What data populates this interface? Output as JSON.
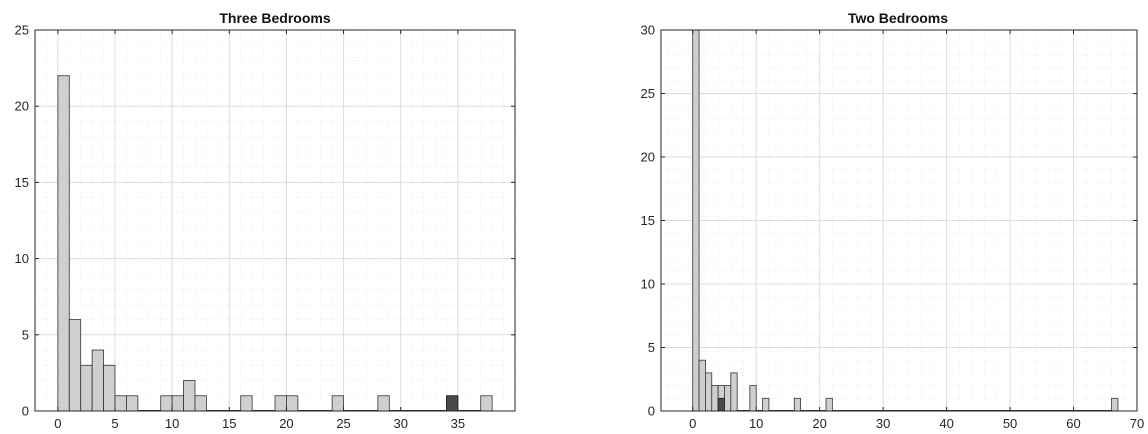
{
  "chart_data": [
    {
      "type": "bar",
      "subtype": "histogram",
      "title": "Three Bedrooms",
      "xlabel": "",
      "ylabel": "",
      "xlim": [
        -2,
        40
      ],
      "ylim": [
        0,
        25
      ],
      "xticks": [
        0,
        5,
        10,
        15,
        20,
        25,
        30,
        35
      ],
      "yticks": [
        0,
        5,
        10,
        15,
        20,
        25
      ],
      "grid": "major-and-minor",
      "bin_width": 1,
      "bin_start": 0,
      "values": [
        22,
        6,
        3,
        4,
        3,
        1,
        1,
        0,
        0,
        1,
        1,
        2,
        1,
        0,
        0,
        0,
        1,
        0,
        0,
        1,
        1,
        0,
        0,
        0,
        1,
        0,
        0,
        0,
        1,
        0,
        0,
        0,
        0,
        0,
        1,
        0,
        0,
        1
      ],
      "highlight": {
        "bin_start": 34,
        "value": 1
      },
      "colors": {
        "bar": "#cfcfcf",
        "highlight": "#4a4a4a",
        "edge": "#333333",
        "grid": "#dddddd"
      }
    },
    {
      "type": "bar",
      "subtype": "histogram",
      "title": "Two Bedrooms",
      "xlabel": "",
      "ylabel": "",
      "xlim": [
        -5,
        70
      ],
      "ylim": [
        0,
        30
      ],
      "xticks": [
        0,
        10,
        20,
        30,
        40,
        50,
        60,
        70
      ],
      "yticks": [
        0,
        5,
        10,
        15,
        20,
        25,
        30
      ],
      "grid": "major-and-minor",
      "bin_width": 1,
      "bin_start": 0,
      "values": [
        30,
        4,
        3,
        2,
        2,
        2,
        3,
        0,
        0,
        2,
        0,
        1,
        0,
        0,
        0,
        0,
        1,
        0,
        0,
        0,
        0,
        1,
        0,
        0,
        0,
        0,
        0,
        0,
        0,
        0,
        0,
        0,
        0,
        0,
        0,
        0,
        0,
        0,
        0,
        0,
        0,
        0,
        0,
        0,
        0,
        0,
        0,
        0,
        0,
        0,
        0,
        0,
        0,
        0,
        0,
        0,
        0,
        0,
        0,
        0,
        0,
        0,
        0,
        0,
        0,
        0,
        1
      ],
      "highlight": {
        "bin_start": 4,
        "value": 1
      },
      "colors": {
        "bar": "#cfcfcf",
        "highlight": "#4a4a4a",
        "edge": "#333333",
        "grid": "#dddddd"
      }
    }
  ]
}
